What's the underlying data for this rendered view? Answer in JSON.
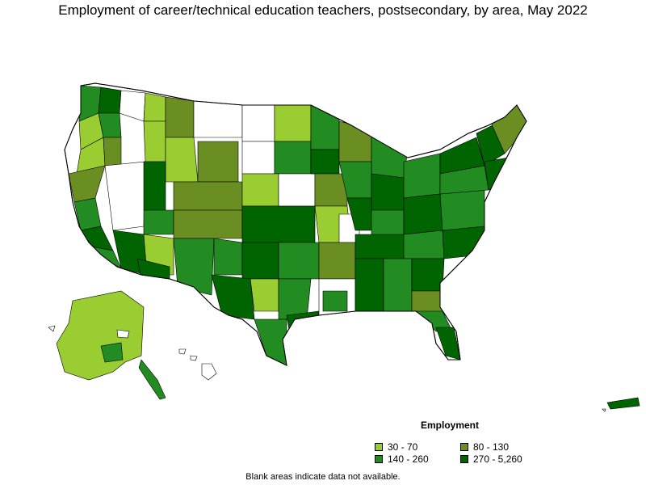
{
  "title": "Employment of career/technical education teachers, postsecondary, by area, May 2022",
  "legend": {
    "title": "Employment",
    "items": [
      {
        "label": "30 - 70",
        "color": "#9acd32"
      },
      {
        "label": "80 - 130",
        "color": "#6b8e23"
      },
      {
        "label": "140 - 260",
        "color": "#228b22"
      },
      {
        "label": "270 - 5,260",
        "color": "#006400"
      }
    ]
  },
  "note": "Blank areas indicate data not available."
}
